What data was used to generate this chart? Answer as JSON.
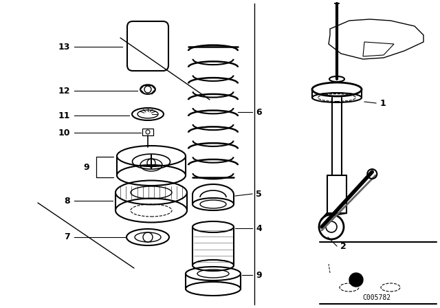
{
  "bg_color": "#ffffff",
  "line_color": "#000000",
  "code_text": "C005782",
  "figsize": [
    6.4,
    4.48
  ],
  "dpi": 100
}
